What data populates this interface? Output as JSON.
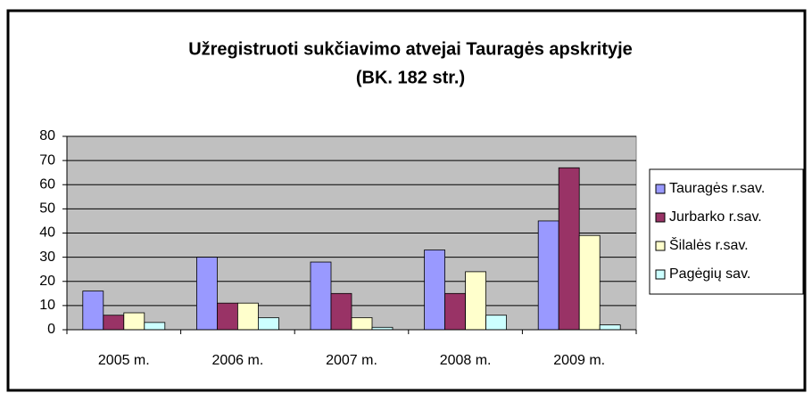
{
  "chart_data": {
    "type": "bar",
    "title": "Užregistruoti sukčiavimo atvejai Tauragės apskrityje",
    "subtitle": "(BK. 182 str.)",
    "categories": [
      "2005 m.",
      "2006 m.",
      "2007 m.",
      "2008 m.",
      "2009 m."
    ],
    "series": [
      {
        "name": "Tauragės r.sav.",
        "color": "#9999ff",
        "values": [
          16,
          30,
          28,
          33,
          45
        ]
      },
      {
        "name": "Jurbarko r.sav.",
        "color": "#993366",
        "values": [
          6,
          11,
          15,
          15,
          67
        ]
      },
      {
        "name": "Šilalės r.sav.",
        "color": "#ffffcc",
        "values": [
          7,
          11,
          5,
          24,
          39
        ]
      },
      {
        "name": "Pagėgių sav.",
        "color": "#ccffff",
        "values": [
          3,
          5,
          1,
          6,
          2
        ]
      }
    ],
    "ylim": [
      0,
      80
    ],
    "yticks": [
      0,
      10,
      20,
      30,
      40,
      50,
      60,
      70,
      80
    ],
    "grid": true,
    "legend": "right"
  }
}
